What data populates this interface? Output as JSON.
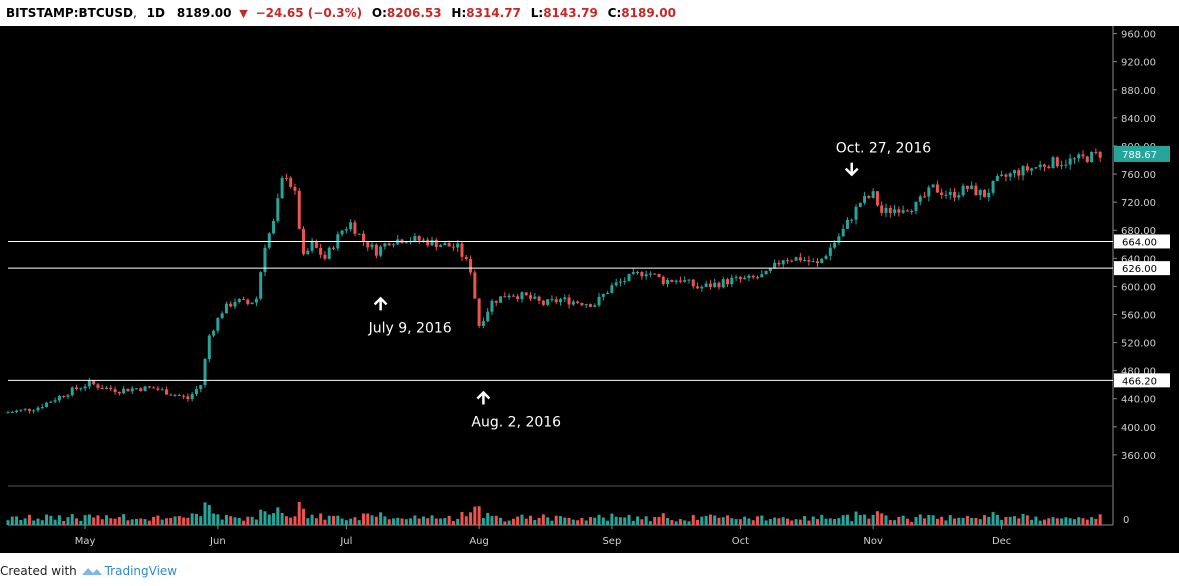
{
  "header": {
    "symbol": "BITSTAMP:BTCUSD",
    "timeframe": "1D",
    "last_price": "8189.00",
    "change": "−24.65 (−0.3%)",
    "open_label": "O:",
    "open": "8206.53",
    "high_label": "H:",
    "high": "8314.77",
    "low_label": "L:",
    "low": "8143.79",
    "close_label": "C:",
    "close": "8189.00"
  },
  "footer": {
    "created_with": "Created with",
    "brand": "TradingView"
  },
  "colors": {
    "up": "#26a69a",
    "down": "#ef5350",
    "background": "#000000",
    "price_tag": "#26a69a"
  },
  "chart_data": {
    "type": "candlestick",
    "yticks": [
      360,
      400,
      440,
      480,
      520,
      560,
      600,
      640,
      680,
      720,
      760,
      800,
      840,
      880,
      920,
      960
    ],
    "ylim": [
      320,
      968
    ],
    "xlabels": [
      {
        "label": "May",
        "date": "2016-05-01"
      },
      {
        "label": "Jun",
        "date": "2016-06-01"
      },
      {
        "label": "Jul",
        "date": "2016-07-01"
      },
      {
        "label": "Aug",
        "date": "2016-08-01"
      },
      {
        "label": "Sep",
        "date": "2016-09-01"
      },
      {
        "label": "Oct",
        "date": "2016-10-01"
      },
      {
        "label": "Nov",
        "date": "2016-11-01"
      },
      {
        "label": "Dec",
        "date": "2016-12-01"
      }
    ],
    "xrange": [
      "2016-04-13",
      "2016-12-27"
    ],
    "current_price": "788.67",
    "hlines": [
      {
        "value": 664.0,
        "label": "664.00"
      },
      {
        "value": 626.0,
        "label": "626.00"
      },
      {
        "value": 466.2,
        "label": "466.20"
      }
    ],
    "annotations": [
      {
        "text": "Oct. 27, 2016",
        "date": "2016-10-27",
        "price": 745,
        "arrow": "down"
      },
      {
        "text": "July 9, 2016",
        "date": "2016-07-09",
        "price": 600,
        "arrow": "up"
      },
      {
        "text": "Aug. 2, 2016",
        "date": "2016-08-02",
        "price": 466,
        "arrow": "up"
      }
    ],
    "volume_axis_label": "0",
    "series": [
      {
        "date": "2016-04-13",
        "close": 420
      },
      {
        "date": "2016-04-17",
        "close": 423
      },
      {
        "date": "2016-04-21",
        "close": 428
      },
      {
        "date": "2016-04-25",
        "close": 440
      },
      {
        "date": "2016-04-29",
        "close": 452
      },
      {
        "date": "2016-05-03",
        "close": 462
      },
      {
        "date": "2016-05-06",
        "close": 456
      },
      {
        "date": "2016-05-10",
        "close": 452
      },
      {
        "date": "2016-05-14",
        "close": 455
      },
      {
        "date": "2016-05-18",
        "close": 455
      },
      {
        "date": "2016-05-22",
        "close": 448
      },
      {
        "date": "2016-05-26",
        "close": 440
      },
      {
        "date": "2016-05-29",
        "close": 460
      },
      {
        "date": "2016-05-31",
        "close": 530
      },
      {
        "date": "2016-06-03",
        "close": 565
      },
      {
        "date": "2016-06-06",
        "close": 580
      },
      {
        "date": "2016-06-09",
        "close": 575
      },
      {
        "date": "2016-06-11",
        "close": 583
      },
      {
        "date": "2016-06-13",
        "close": 660
      },
      {
        "date": "2016-06-15",
        "close": 690
      },
      {
        "date": "2016-06-17",
        "close": 750
      },
      {
        "date": "2016-06-18",
        "close": 760
      },
      {
        "date": "2016-06-19",
        "close": 745
      },
      {
        "date": "2016-06-20",
        "close": 730
      },
      {
        "date": "2016-06-22",
        "close": 640
      },
      {
        "date": "2016-06-24",
        "close": 660
      },
      {
        "date": "2016-06-27",
        "close": 640
      },
      {
        "date": "2016-07-01",
        "close": 680
      },
      {
        "date": "2016-07-03",
        "close": 690
      },
      {
        "date": "2016-07-06",
        "close": 665
      },
      {
        "date": "2016-07-09",
        "close": 650
      },
      {
        "date": "2016-07-12",
        "close": 665
      },
      {
        "date": "2016-07-16",
        "close": 668
      },
      {
        "date": "2016-07-20",
        "close": 665
      },
      {
        "date": "2016-07-24",
        "close": 660
      },
      {
        "date": "2016-07-28",
        "close": 655
      },
      {
        "date": "2016-07-31",
        "close": 624
      },
      {
        "date": "2016-08-02",
        "close": 545
      },
      {
        "date": "2016-08-05",
        "close": 578
      },
      {
        "date": "2016-08-09",
        "close": 590
      },
      {
        "date": "2016-08-13",
        "close": 585
      },
      {
        "date": "2016-08-17",
        "close": 575
      },
      {
        "date": "2016-08-21",
        "close": 581
      },
      {
        "date": "2016-08-25",
        "close": 578
      },
      {
        "date": "2016-08-29",
        "close": 575
      },
      {
        "date": "2016-09-02",
        "close": 600
      },
      {
        "date": "2016-09-06",
        "close": 612
      },
      {
        "date": "2016-09-10",
        "close": 622
      },
      {
        "date": "2016-09-14",
        "close": 608
      },
      {
        "date": "2016-09-18",
        "close": 610
      },
      {
        "date": "2016-09-22",
        "close": 598
      },
      {
        "date": "2016-09-26",
        "close": 603
      },
      {
        "date": "2016-09-30",
        "close": 609
      },
      {
        "date": "2016-10-04",
        "close": 610
      },
      {
        "date": "2016-10-08",
        "close": 616
      },
      {
        "date": "2016-10-12",
        "close": 640
      },
      {
        "date": "2016-10-16",
        "close": 640
      },
      {
        "date": "2016-10-20",
        "close": 631
      },
      {
        "date": "2016-10-23",
        "close": 655
      },
      {
        "date": "2016-10-26",
        "close": 680
      },
      {
        "date": "2016-10-28",
        "close": 700
      },
      {
        "date": "2016-10-30",
        "close": 720
      },
      {
        "date": "2016-11-02",
        "close": 730
      },
      {
        "date": "2016-11-04",
        "close": 705
      },
      {
        "date": "2016-11-08",
        "close": 712
      },
      {
        "date": "2016-11-12",
        "close": 715
      },
      {
        "date": "2016-11-16",
        "close": 740
      },
      {
        "date": "2016-11-20",
        "close": 730
      },
      {
        "date": "2016-11-24",
        "close": 740
      },
      {
        "date": "2016-11-28",
        "close": 730
      },
      {
        "date": "2016-12-01",
        "close": 750
      },
      {
        "date": "2016-12-05",
        "close": 762
      },
      {
        "date": "2016-12-09",
        "close": 768
      },
      {
        "date": "2016-12-13",
        "close": 776
      },
      {
        "date": "2016-12-17",
        "close": 778
      },
      {
        "date": "2016-12-21",
        "close": 782
      },
      {
        "date": "2016-12-25",
        "close": 789
      }
    ]
  }
}
